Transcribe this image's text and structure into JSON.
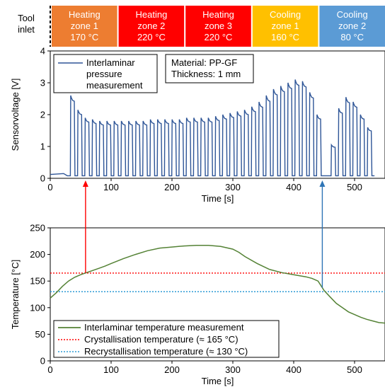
{
  "zone_bar": {
    "start_label_line1": "Tool",
    "start_label_line2": "inlet",
    "zones": [
      {
        "line1": "Heating",
        "line2": "zone 1",
        "line3": "170 °C",
        "color": "#ED7D31"
      },
      {
        "line1": "Heating",
        "line2": "zone 2",
        "line3": "220 °C",
        "color": "#FF0000"
      },
      {
        "line1": "Heating",
        "line2": "zone 3",
        "line3": "220 °C",
        "color": "#FF0000"
      },
      {
        "line1": "Cooling",
        "line2": "zone 1",
        "line3": "160 °C",
        "color": "#FFC000"
      },
      {
        "line1": "Cooling",
        "line2": "zone 2",
        "line3": "80 °C",
        "color": "#5B9BD5"
      }
    ]
  },
  "chart_data": [
    {
      "type": "line",
      "xlabel": "Time [s]",
      "ylabel": "Sensorvoltage [V]",
      "xlim": [
        0,
        550
      ],
      "ylim": [
        0,
        4
      ],
      "xticks": [
        0,
        100,
        200,
        300,
        400,
        500
      ],
      "yticks": [
        0,
        1,
        2,
        3,
        4
      ],
      "grid": false,
      "legend": {
        "position": "top-left",
        "line1": "Interlaminar",
        "line2": "pressure",
        "line3": "measurement"
      },
      "annotation": {
        "line1": "Material: PP-GF",
        "line2": "Thickness: 1 mm"
      },
      "series": [
        {
          "name": "Interlaminar pressure measurement",
          "color": "#2E5597",
          "baseline": 0.08,
          "pre_pulse": {
            "x": [
              0,
              28
            ],
            "y": 0.12
          },
          "pulse_period": 11.9,
          "pulse_start": 33,
          "pulse_width_fraction": 0.62,
          "peaks": [
            2.6,
            2.15,
            1.9,
            1.85,
            1.8,
            1.8,
            1.8,
            1.8,
            1.8,
            1.8,
            1.8,
            1.85,
            1.85,
            1.85,
            1.85,
            1.85,
            1.9,
            1.9,
            1.9,
            1.9,
            1.95,
            2.0,
            2.05,
            2.1,
            2.15,
            2.25,
            2.4,
            2.6,
            2.8,
            2.9,
            3.0,
            3.1,
            3.05,
            2.7,
            2.0,
            0.0,
            1.05,
            2.2,
            2.55,
            2.4,
            2.0,
            1.6
          ]
        }
      ]
    },
    {
      "type": "line",
      "xlabel": "Time [s]",
      "ylabel": "Temperature [°C]",
      "xlim": [
        0,
        550
      ],
      "ylim": [
        0,
        250
      ],
      "xticks": [
        0,
        100,
        200,
        300,
        400,
        500
      ],
      "yticks": [
        0,
        50,
        100,
        150,
        200,
        250
      ],
      "grid": false,
      "legend": {
        "position": "bottom-left"
      },
      "series": [
        {
          "name": "Interlaminar temperature measurement",
          "color": "#548235",
          "x": [
            0,
            10,
            20,
            30,
            40,
            50,
            60,
            70,
            80,
            90,
            100,
            120,
            140,
            160,
            180,
            200,
            220,
            240,
            260,
            280,
            300,
            310,
            320,
            340,
            360,
            380,
            400,
            420,
            430,
            440,
            450,
            460,
            470,
            480,
            490,
            500,
            510,
            520,
            530,
            540,
            550
          ],
          "y": [
            118,
            128,
            140,
            150,
            157,
            162,
            166,
            170,
            174,
            178,
            183,
            192,
            200,
            207,
            212,
            214,
            216,
            217,
            217,
            215,
            210,
            204,
            196,
            183,
            172,
            166,
            162,
            158,
            155,
            150,
            132,
            120,
            108,
            100,
            92,
            87,
            82,
            78,
            75,
            72,
            71
          ]
        },
        {
          "name": "Crystallisation temperature (≈ 165 °C)",
          "color": "#FF0000",
          "dash": "dotted",
          "y": 165
        },
        {
          "name": "Recrystallisation temperature (≈ 130 °C)",
          "color": "#2E9BD6",
          "dash": "dotted",
          "y": 130
        }
      ]
    }
  ],
  "markers": [
    {
      "x": 58,
      "color": "#FF0000"
    },
    {
      "x": 447,
      "color": "#2E75B6"
    }
  ]
}
